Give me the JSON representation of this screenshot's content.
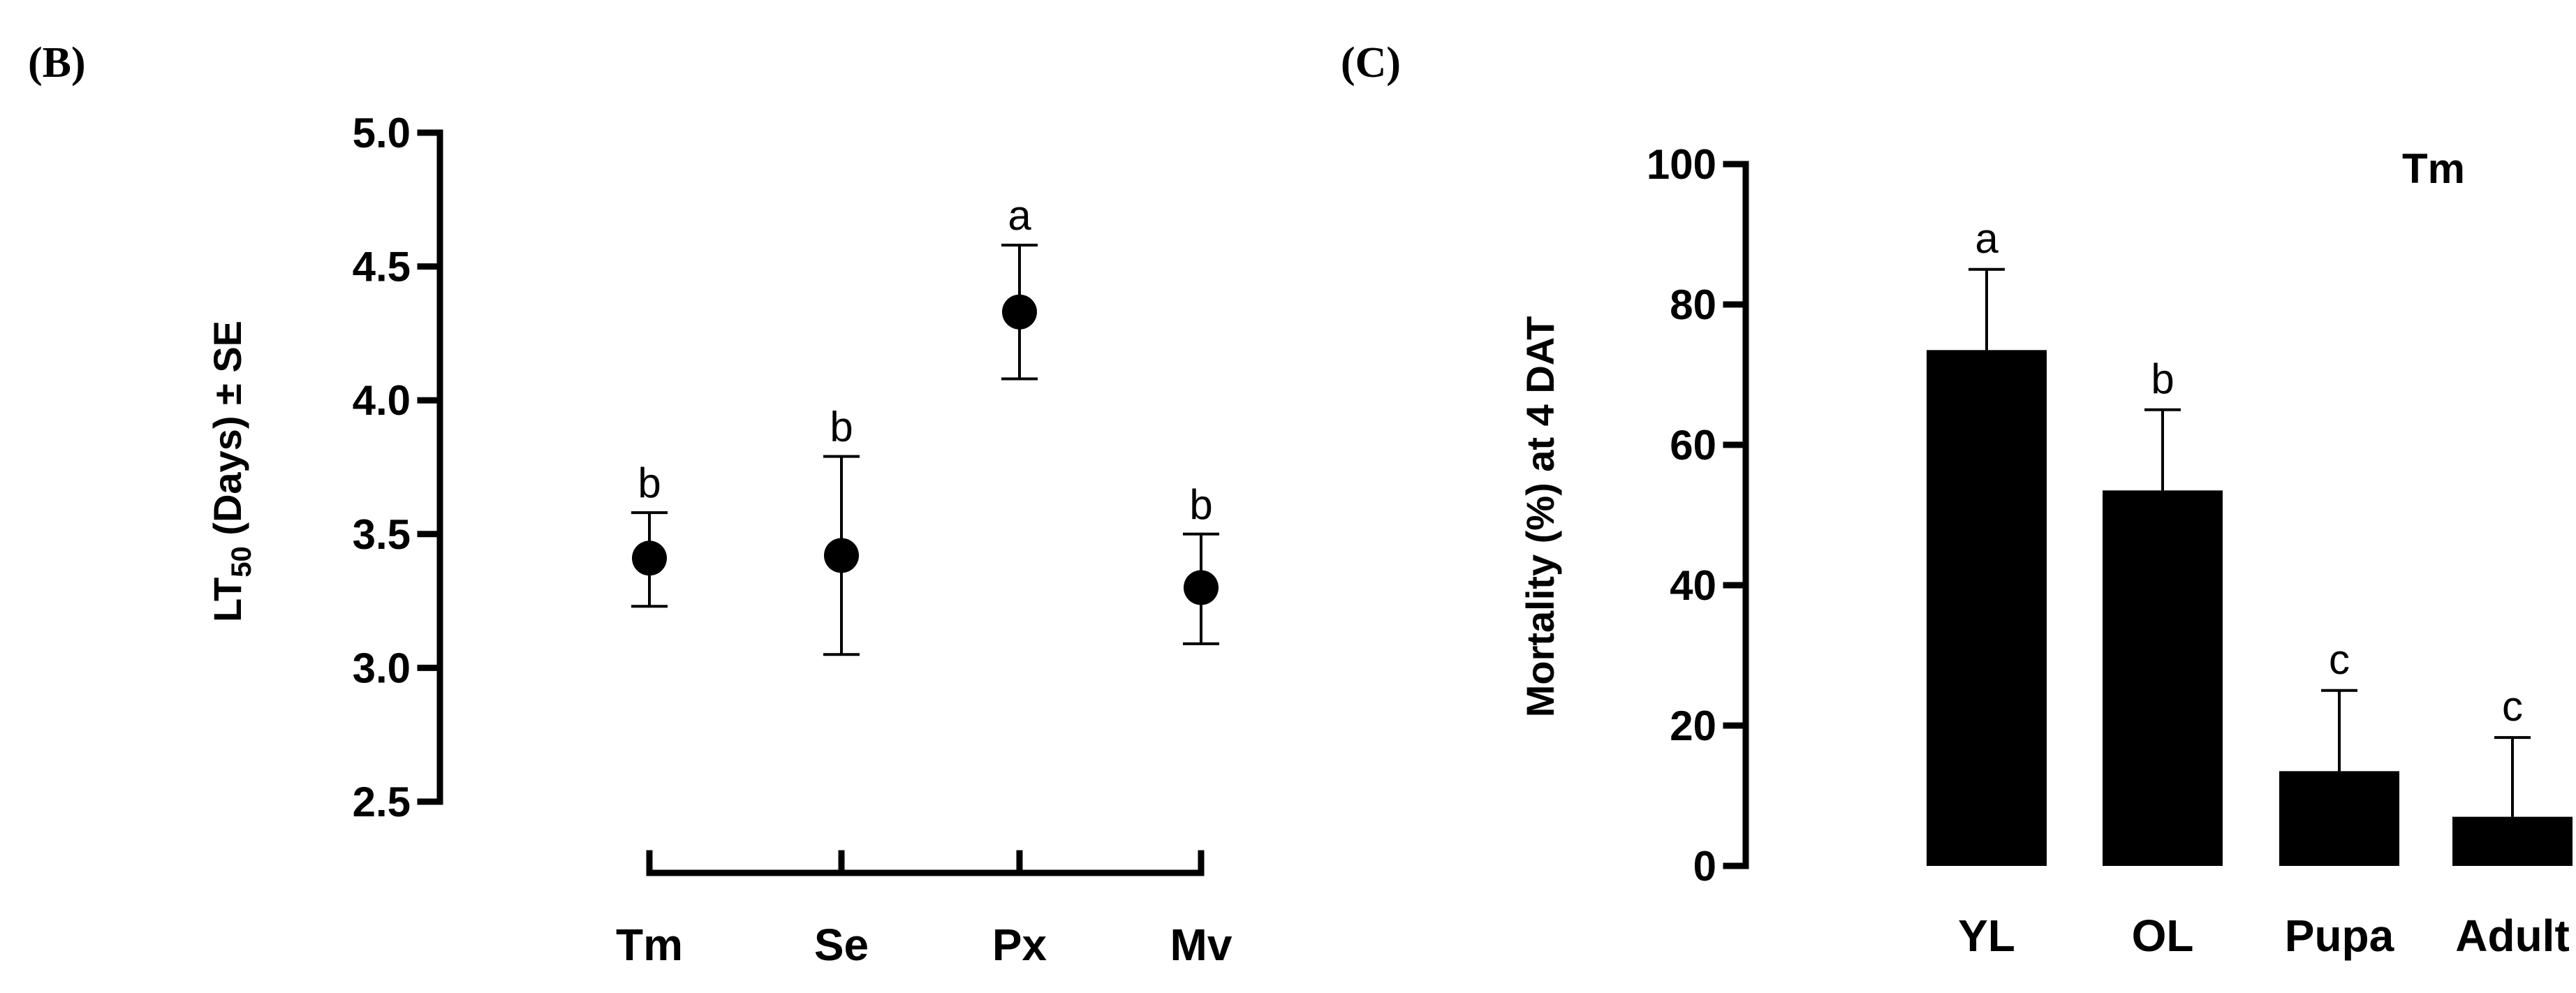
{
  "panels": {
    "b_label": "(B)",
    "c_label": "(C)"
  },
  "chart_data": [
    {
      "id": "B",
      "type": "scatter",
      "categories": [
        "Tm",
        "Se",
        "Px",
        "Mv"
      ],
      "values": [
        3.41,
        3.42,
        4.33,
        3.3
      ],
      "error_low": [
        3.23,
        3.05,
        4.08,
        3.09
      ],
      "error_high": [
        3.58,
        3.79,
        4.58,
        3.5
      ],
      "significance": [
        "b",
        "b",
        "a",
        "b"
      ],
      "ylabel_main": "LT",
      "ylabel_sub": "50",
      "ylabel_rest": " (Days) ± SE",
      "ylim": [
        2.5,
        5.0
      ],
      "yticks": [
        "2.5",
        "3.0",
        "3.5",
        "4.0",
        "4.5",
        "5.0"
      ],
      "grid": false
    },
    {
      "id": "C",
      "type": "bar",
      "categories": [
        "YL",
        "OL",
        "Pupa",
        "Adult"
      ],
      "values": [
        73.5,
        53.5,
        13.5,
        7.0
      ],
      "error_high": [
        85,
        65,
        25,
        18.3
      ],
      "significance": [
        "a",
        "b",
        "c",
        "c"
      ],
      "ylabel": "Mortality (%) at 4 DAT",
      "annotation": "Tm",
      "ylim": [
        0,
        100
      ],
      "yticks": [
        "0",
        "20",
        "40",
        "60",
        "80",
        "100"
      ],
      "grid": false,
      "bar_color": "#000000"
    }
  ]
}
